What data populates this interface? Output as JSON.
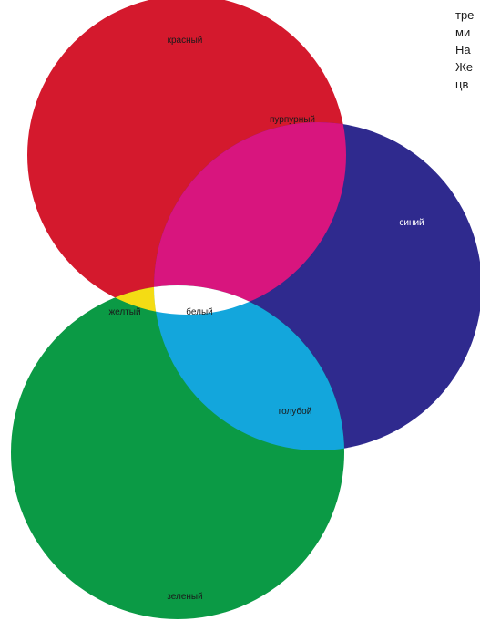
{
  "diagram": {
    "labels": {
      "red": "красный",
      "magenta": "пурпурный",
      "blue": "синий",
      "yellow": "желтый",
      "white": "белый",
      "cyan": "голубой",
      "green": "зеленый"
    },
    "colors": {
      "red": "#d4192d",
      "blue": "#2f2a8e",
      "green": "#0b9a45",
      "magenta": "#d8157e",
      "yellow": "#f4dc14",
      "cyan": "#13a6dc",
      "white": "#ffffff"
    }
  },
  "side_text": [
    "тре",
    "ми",
    "На",
    "Же",
    "цв"
  ]
}
